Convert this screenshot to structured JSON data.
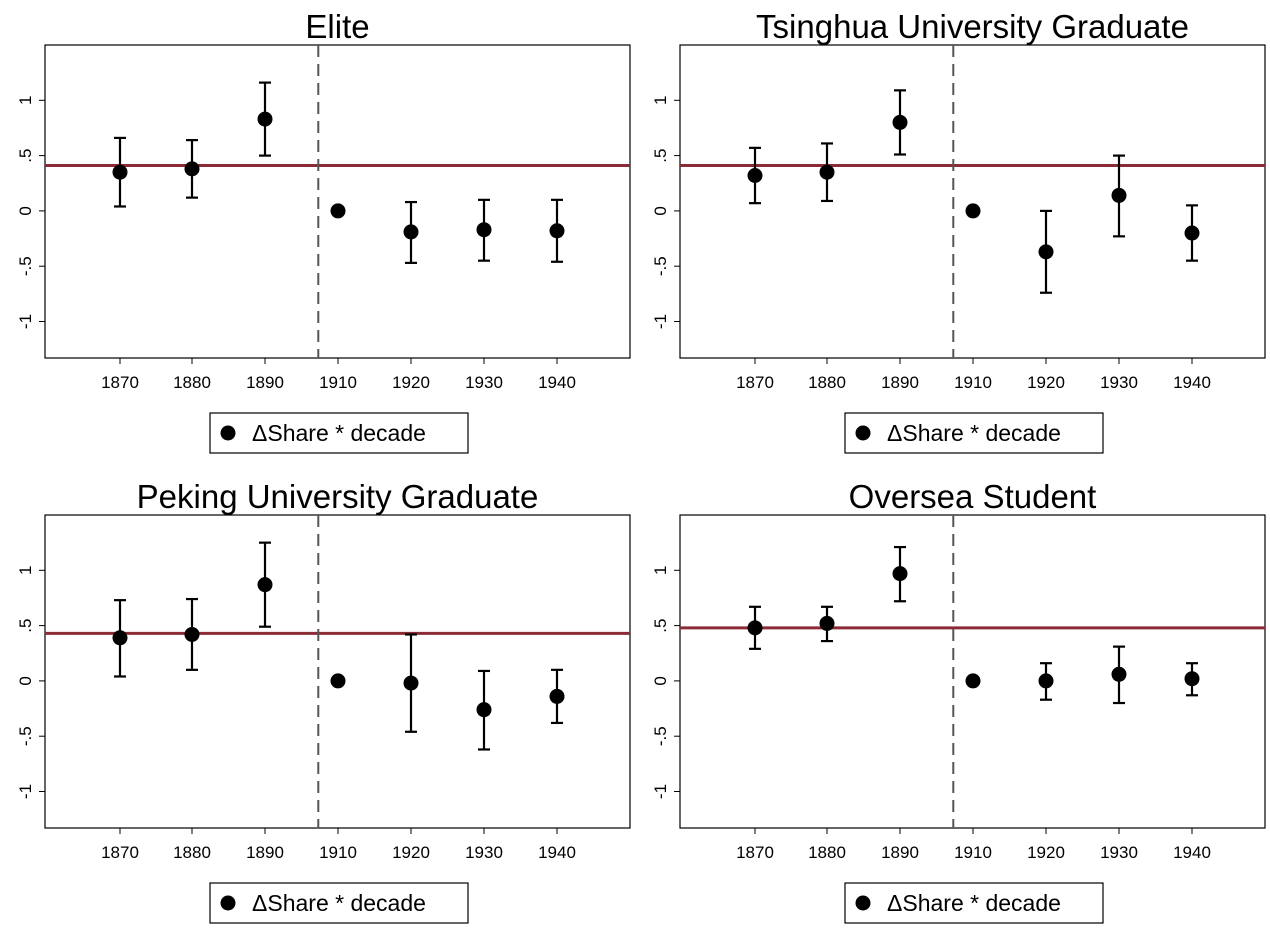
{
  "chart_data": [
    {
      "type": "scatter",
      "title": "Elite",
      "x": [
        "1870",
        "1880",
        "1890",
        "1910",
        "1920",
        "1930",
        "1940"
      ],
      "series": [
        {
          "name": "ΔShare * decade",
          "values": [
            0.35,
            0.38,
            0.83,
            0.0,
            -0.19,
            -0.17,
            -0.18
          ],
          "ci_low": [
            0.04,
            0.12,
            0.5,
            0.0,
            -0.47,
            -0.45,
            -0.46
          ],
          "ci_high": [
            0.66,
            0.64,
            1.16,
            0.0,
            0.08,
            0.1,
            0.1
          ]
        }
      ],
      "mean_line": 0.41,
      "vline_between": [
        "1890",
        "1910"
      ],
      "yticks": [
        "-1",
        "-.5",
        "0",
        ".5",
        "1"
      ],
      "ylim": [
        -1.33,
        1.5
      ],
      "xlabel": "",
      "ylabel": "",
      "legend": {
        "label": "ΔShare * decade",
        "position": "bottom"
      }
    },
    {
      "type": "scatter",
      "title": "Tsinghua University Graduate",
      "x": [
        "1870",
        "1880",
        "1890",
        "1910",
        "1920",
        "1930",
        "1940"
      ],
      "series": [
        {
          "name": "ΔShare * decade",
          "values": [
            0.32,
            0.35,
            0.8,
            0.0,
            -0.37,
            0.14,
            -0.2
          ],
          "ci_low": [
            0.07,
            0.09,
            0.51,
            0.0,
            -0.74,
            -0.23,
            -0.45
          ],
          "ci_high": [
            0.57,
            0.61,
            1.09,
            0.0,
            0.0,
            0.5,
            0.05
          ]
        }
      ],
      "mean_line": 0.41,
      "vline_between": [
        "1890",
        "1910"
      ],
      "yticks": [
        "-1",
        "-.5",
        "0",
        ".5",
        "1"
      ],
      "ylim": [
        -1.33,
        1.5
      ],
      "xlabel": "",
      "ylabel": "",
      "legend": {
        "label": "ΔShare * decade",
        "position": "bottom"
      }
    },
    {
      "type": "scatter",
      "title": "Peking University Graduate",
      "x": [
        "1870",
        "1880",
        "1890",
        "1910",
        "1920",
        "1930",
        "1940"
      ],
      "series": [
        {
          "name": "ΔShare * decade",
          "values": [
            0.39,
            0.42,
            0.87,
            0.0,
            -0.02,
            -0.26,
            -0.14
          ],
          "ci_low": [
            0.04,
            0.1,
            0.49,
            0.0,
            -0.46,
            -0.62,
            -0.38
          ],
          "ci_high": [
            0.73,
            0.74,
            1.25,
            0.0,
            0.42,
            0.09,
            0.1
          ]
        }
      ],
      "mean_line": 0.43,
      "vline_between": [
        "1890",
        "1910"
      ],
      "yticks": [
        "-1",
        "-.5",
        "0",
        ".5",
        "1"
      ],
      "ylim": [
        -1.33,
        1.5
      ],
      "xlabel": "",
      "ylabel": "",
      "legend": {
        "label": "ΔShare * decade",
        "position": "bottom"
      }
    },
    {
      "type": "scatter",
      "title": "Oversea Student",
      "x": [
        "1870",
        "1880",
        "1890",
        "1910",
        "1920",
        "1930",
        "1940"
      ],
      "series": [
        {
          "name": "ΔShare * decade",
          "values": [
            0.48,
            0.52,
            0.97,
            0.0,
            0.0,
            0.06,
            0.02
          ],
          "ci_low": [
            0.29,
            0.36,
            0.72,
            0.0,
            -0.17,
            -0.2,
            -0.13
          ],
          "ci_high": [
            0.67,
            0.67,
            1.21,
            0.0,
            0.16,
            0.31,
            0.16
          ]
        }
      ],
      "mean_line": 0.48,
      "vline_between": [
        "1890",
        "1910"
      ],
      "yticks": [
        "-1",
        "-.5",
        "0",
        ".5",
        "1"
      ],
      "ylim": [
        -1.33,
        1.5
      ],
      "xlabel": "",
      "ylabel": "",
      "legend": {
        "label": "ΔShare * decade",
        "position": "bottom"
      }
    }
  ],
  "colors": {
    "marker": "#000000",
    "mean_line": "#8b2b36",
    "vline": "#555555",
    "frame": "#000000"
  }
}
